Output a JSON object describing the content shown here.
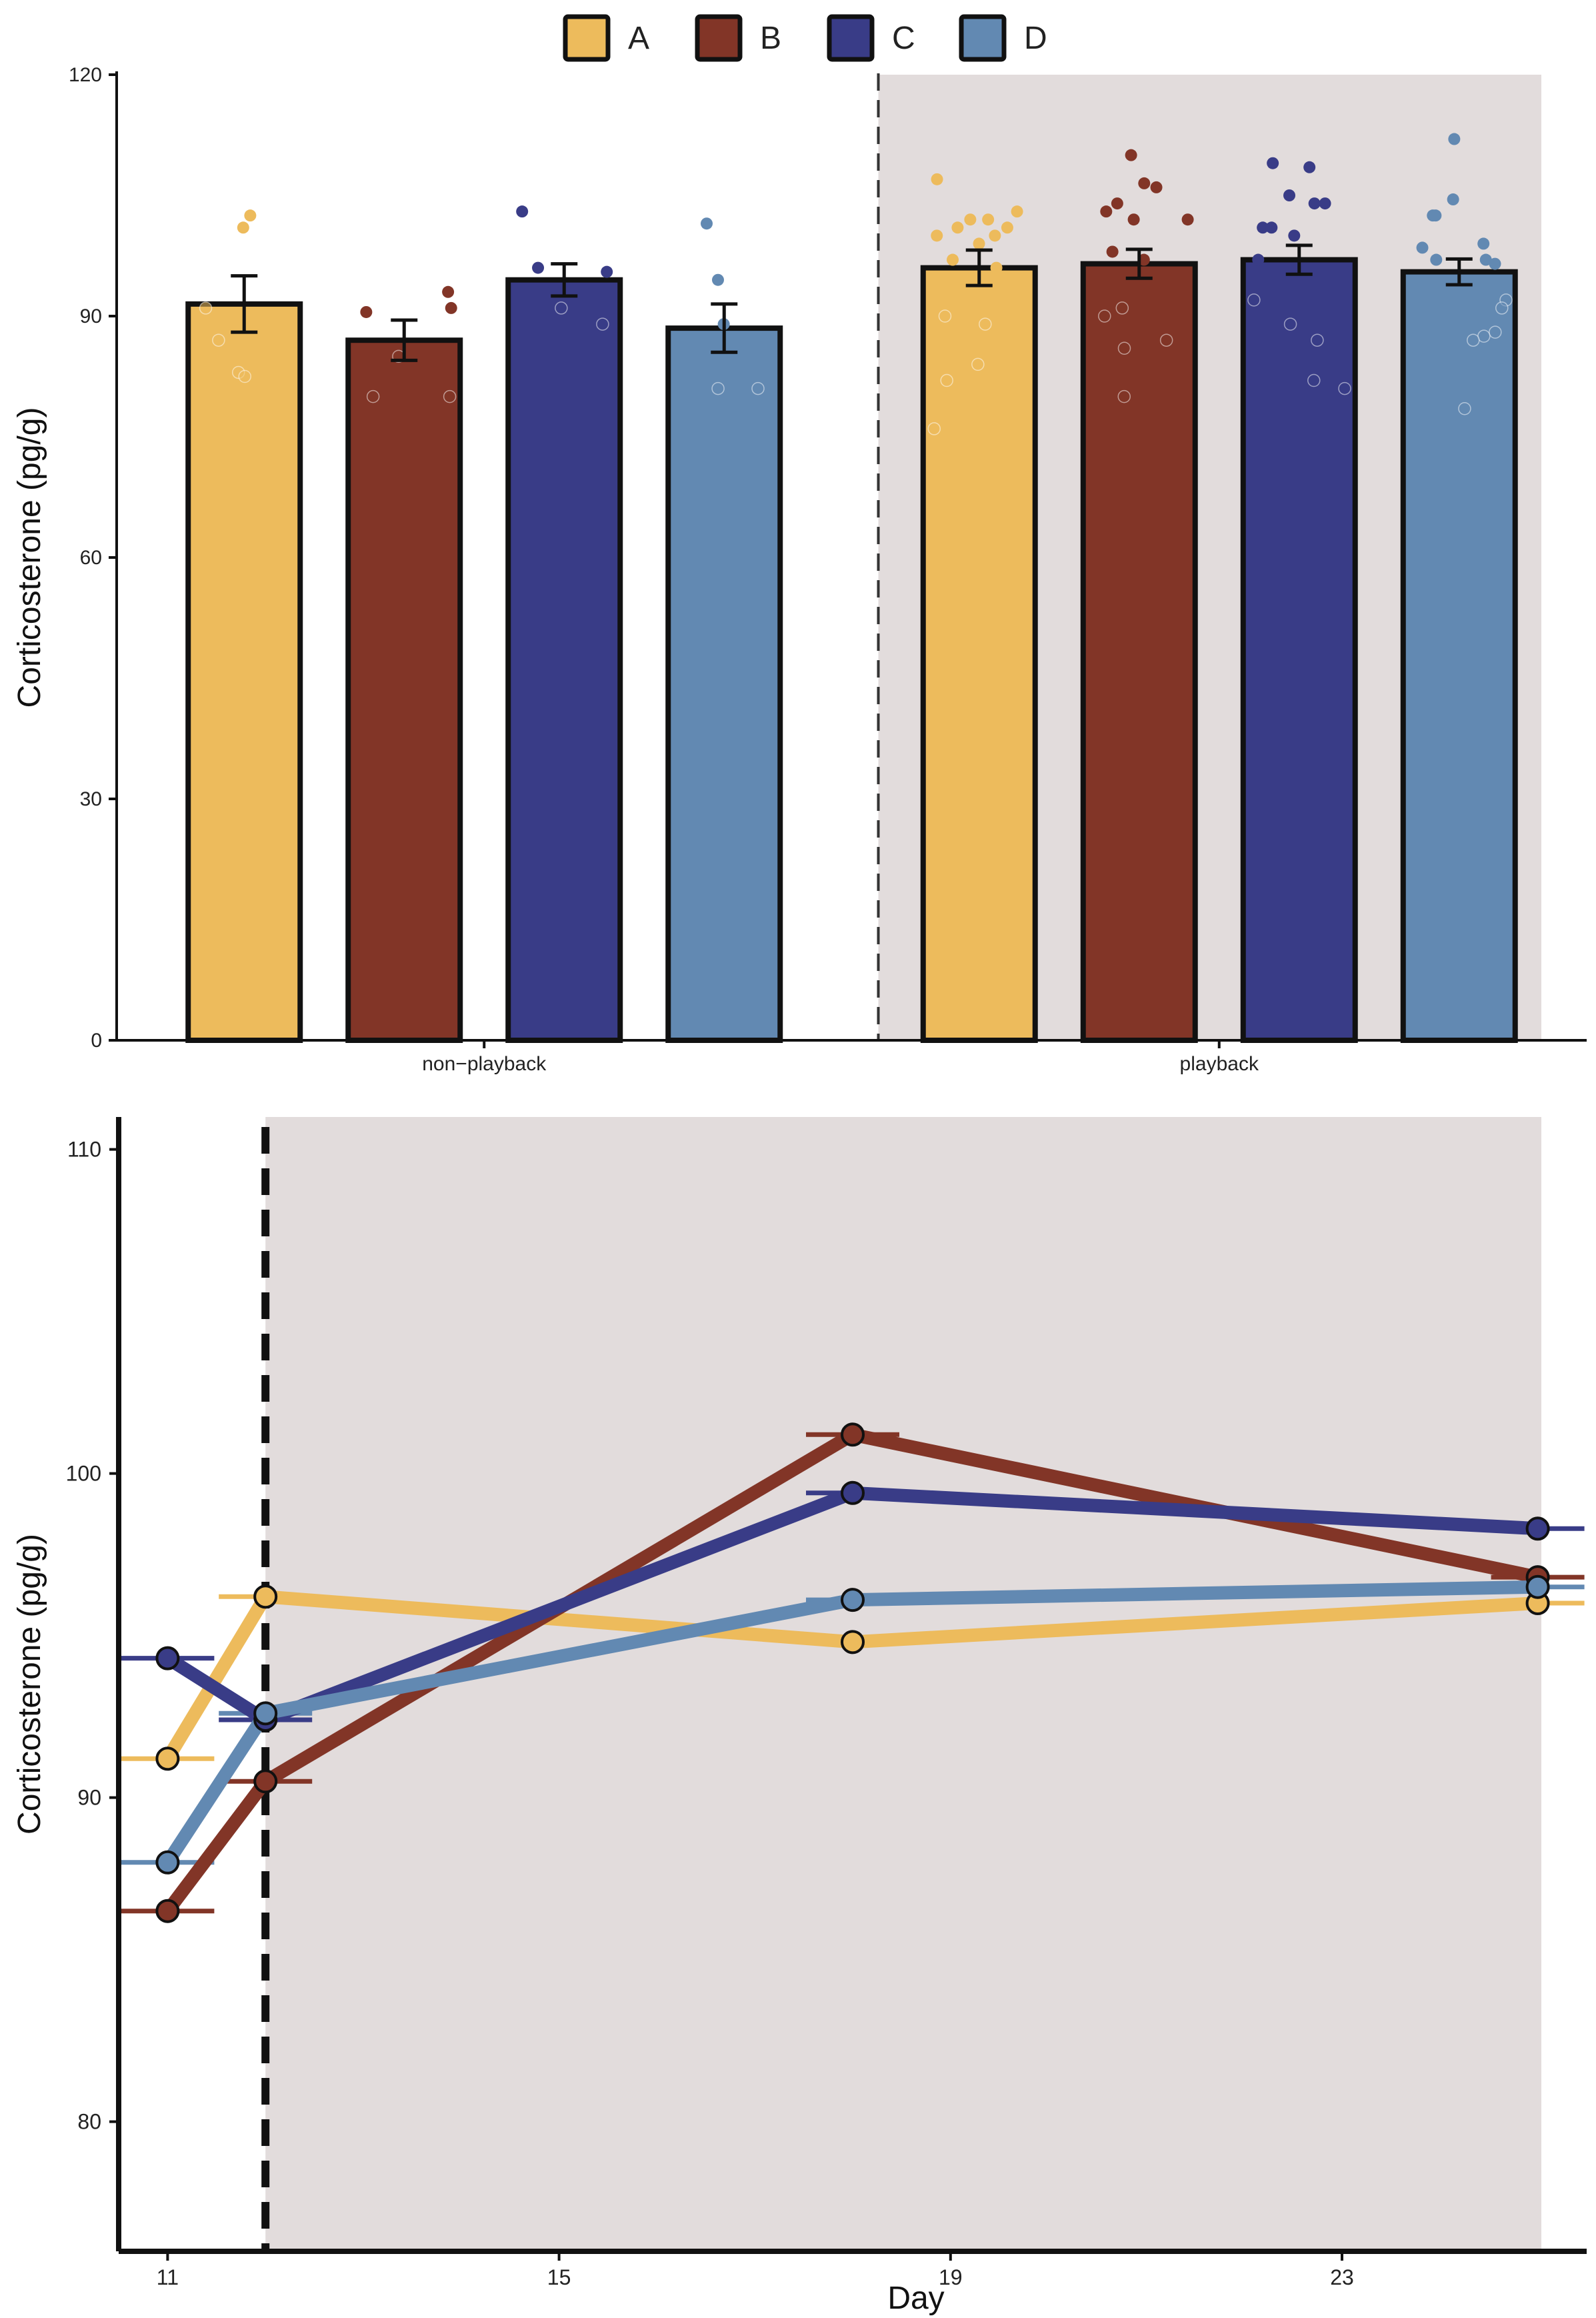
{
  "legend": {
    "entries": [
      {
        "label": "A",
        "color": "#EDBB5C"
      },
      {
        "label": "B",
        "color": "#823527"
      },
      {
        "label": "C",
        "color": "#393C87"
      },
      {
        "label": "D",
        "color": "#6289B2"
      }
    ]
  },
  "chart_data": [
    {
      "type": "bar",
      "title": "",
      "xlabel": "",
      "ylabel": "Corticosterone (pg/g)",
      "ylim": [
        0,
        120
      ],
      "yticks": [
        0,
        30,
        60,
        90,
        120
      ],
      "groups": [
        "non−playback",
        "playback"
      ],
      "shaded_group": "playback",
      "grid": false,
      "series": [
        {
          "name": "A",
          "color": "#EDBB5C",
          "values": [
            91.5,
            96.0
          ],
          "errors": [
            3.5,
            2.2
          ],
          "points": [
            [
              101,
              102.5,
              91,
              87,
              83,
              82.5
            ],
            [
              107,
              103,
              102,
              102,
              101,
              101,
              100,
              100,
              99,
              97,
              96,
              90,
              89,
              84,
              82,
              76
            ]
          ]
        },
        {
          "name": "B",
          "color": "#823527",
          "values": [
            87.0,
            96.5
          ],
          "errors": [
            2.5,
            1.8
          ],
          "points": [
            [
              93,
              91,
              90.5,
              85,
              80,
              80
            ],
            [
              110,
              106.5,
              106,
              104,
              103,
              102,
              102,
              98,
              97,
              91,
              90,
              87,
              86,
              80
            ]
          ]
        },
        {
          "name": "C",
          "color": "#393C87",
          "values": [
            94.5,
            97.0
          ],
          "errors": [
            2.0,
            1.8
          ],
          "points": [
            [
              103,
              95.5,
              96,
              89,
              91
            ],
            [
              109,
              108.5,
              105,
              104,
              104,
              101,
              101,
              100,
              97,
              92,
              89,
              87,
              82,
              81
            ]
          ]
        },
        {
          "name": "D",
          "color": "#6289B2",
          "values": [
            88.5,
            95.5
          ],
          "errors": [
            3.0,
            1.6
          ],
          "points": [
            [
              101.5,
              94.5,
              89,
              81,
              81
            ],
            [
              112,
              104.5,
              102.5,
              102.5,
              99,
              98.5,
              97,
              97,
              96.5,
              92,
              91,
              88,
              87.5,
              87,
              78.5
            ]
          ]
        }
      ]
    },
    {
      "type": "line",
      "title": "",
      "xlabel": "Day",
      "ylabel": "Corticosterone (pg/g)",
      "xlim": [
        10.5,
        25.5
      ],
      "ylim": [
        76,
        111
      ],
      "xticks": [
        11,
        15,
        19,
        23
      ],
      "yticks": [
        80,
        90,
        100,
        110
      ],
      "x": [
        11,
        12,
        18,
        25
      ],
      "shade_from_x": 12,
      "vline_x": 12,
      "grid": false,
      "series": [
        {
          "name": "A",
          "color": "#EDBB5C",
          "values": [
            91.2,
            96.2,
            94.8,
            96.0
          ]
        },
        {
          "name": "B",
          "color": "#823527",
          "values": [
            86.5,
            90.5,
            101.2,
            96.8
          ]
        },
        {
          "name": "C",
          "color": "#393C87",
          "values": [
            94.3,
            92.4,
            99.4,
            98.3
          ]
        },
        {
          "name": "D",
          "color": "#6289B2",
          "values": [
            88.0,
            92.6,
            96.1,
            96.5
          ]
        }
      ]
    }
  ]
}
